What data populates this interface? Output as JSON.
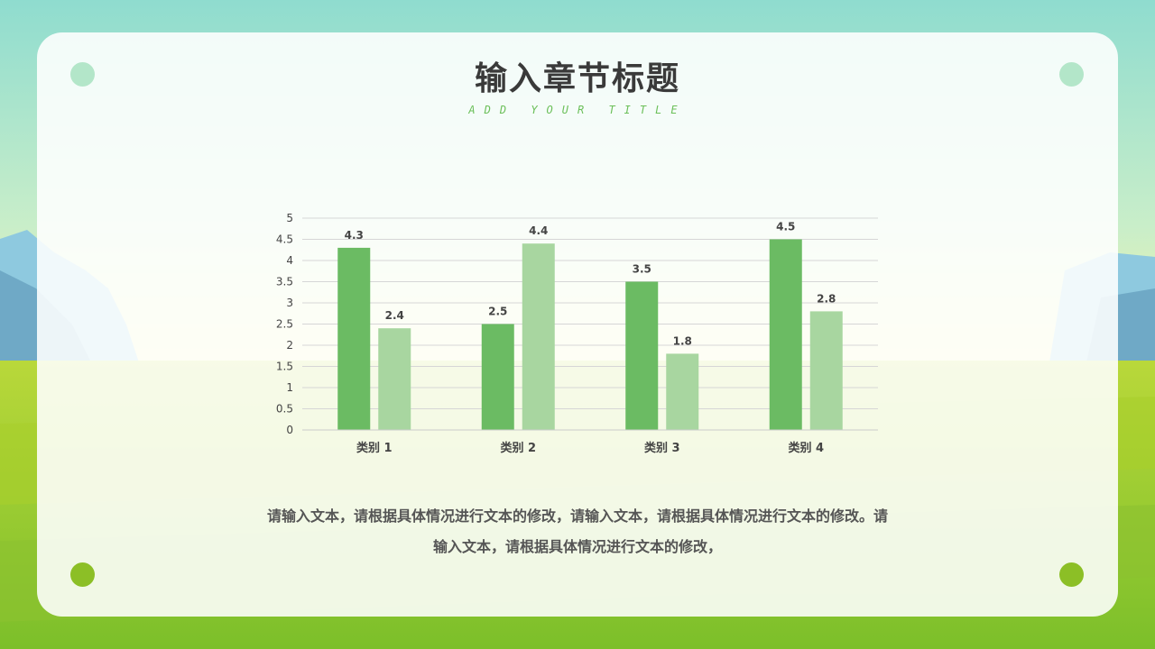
{
  "header": {
    "title": "输入章节标题",
    "subtitle": "ADD YOUR TITLE"
  },
  "body": {
    "text": "请输入文本，请根据具体情况进行文本的修改，请输入文本，请根据具体情况进行文本的修改。请输入文本，请根据具体情况进行文本的修改，"
  },
  "colors": {
    "series_dark": "#6bbb63",
    "series_light": "#a8d6a0",
    "title": "#3a3a3a",
    "accent": "#6bbf59"
  },
  "chart_data": {
    "type": "bar",
    "categories": [
      "类别 1",
      "类别 2",
      "类别 3",
      "类别 4"
    ],
    "series": [
      {
        "values": [
          4.3,
          2.5,
          3.5,
          4.5
        ]
      },
      {
        "values": [
          2.4,
          4.4,
          1.8,
          2.8
        ]
      }
    ],
    "ylim": [
      0,
      5
    ],
    "yticks": [
      "0",
      "0.5",
      "1",
      "1.5",
      "2",
      "2.5",
      "3",
      "3.5",
      "4",
      "4.5",
      "5"
    ],
    "grid": true,
    "data_labels": true
  }
}
